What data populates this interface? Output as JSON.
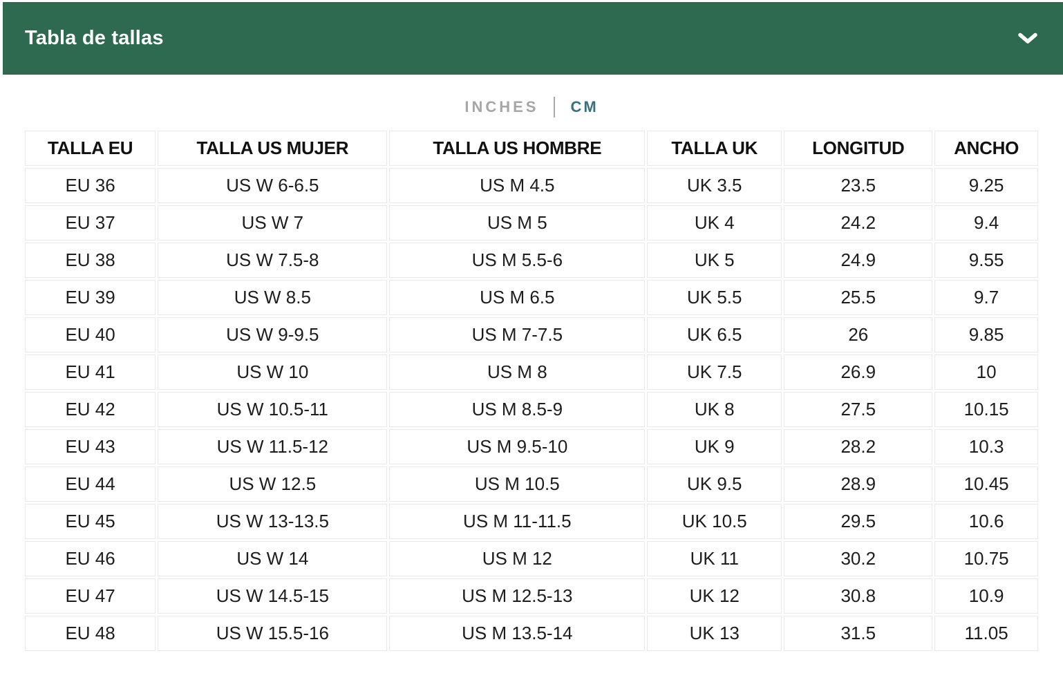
{
  "panel": {
    "title": "Tabla de tallas",
    "collapse_icon": "chevron-down"
  },
  "unit_toggle": {
    "inches_label": "INCHES",
    "cm_label": "CM",
    "selected": "CM",
    "divider": "|"
  },
  "colors": {
    "panel_green": "#2D6A4F",
    "selected_teal": "#37717A",
    "unselected_gray": "#A6A6A6",
    "cell_border": "#E7E9EB",
    "text_dark": "#1B1B1B"
  },
  "size_table": {
    "columns": [
      "TALLA EU",
      "TALLA US MUJER",
      "TALLA US HOMBRE",
      "TALLA UK",
      "LONGITUD",
      "ANCHO"
    ],
    "rows": [
      [
        "EU 36",
        "US W 6-6.5",
        "US M 4.5",
        "UK 3.5",
        "23.5",
        "9.25"
      ],
      [
        "EU 37",
        "US W 7",
        "US M 5",
        "UK 4",
        "24.2",
        "9.4"
      ],
      [
        "EU 38",
        "US W 7.5-8",
        "US M 5.5-6",
        "UK 5",
        "24.9",
        "9.55"
      ],
      [
        "EU 39",
        "US W 8.5",
        "US M 6.5",
        "UK 5.5",
        "25.5",
        "9.7"
      ],
      [
        "EU 40",
        "US W 9-9.5",
        "US M 7-7.5",
        "UK 6.5",
        "26",
        "9.85"
      ],
      [
        "EU 41",
        "US W 10",
        "US M 8",
        "UK 7.5",
        "26.9",
        "10"
      ],
      [
        "EU 42",
        "US W 10.5-11",
        "US M 8.5-9",
        "UK 8",
        "27.5",
        "10.15"
      ],
      [
        "EU 43",
        "US W 11.5-12",
        "US M 9.5-10",
        "UK 9",
        "28.2",
        "10.3"
      ],
      [
        "EU 44",
        "US W 12.5",
        "US M 10.5",
        "UK 9.5",
        "28.9",
        "10.45"
      ],
      [
        "EU 45",
        "US W 13-13.5",
        "US M 11-11.5",
        "UK 10.5",
        "29.5",
        "10.6"
      ],
      [
        "EU 46",
        "US W 14",
        "US M 12",
        "UK 11",
        "30.2",
        "10.75"
      ],
      [
        "EU 47",
        "US W 14.5-15",
        "US M 12.5-13",
        "UK 12",
        "30.8",
        "10.9"
      ],
      [
        "EU 48",
        "US W 15.5-16",
        "US M 13.5-14",
        "UK 13",
        "31.5",
        "11.05"
      ]
    ]
  }
}
